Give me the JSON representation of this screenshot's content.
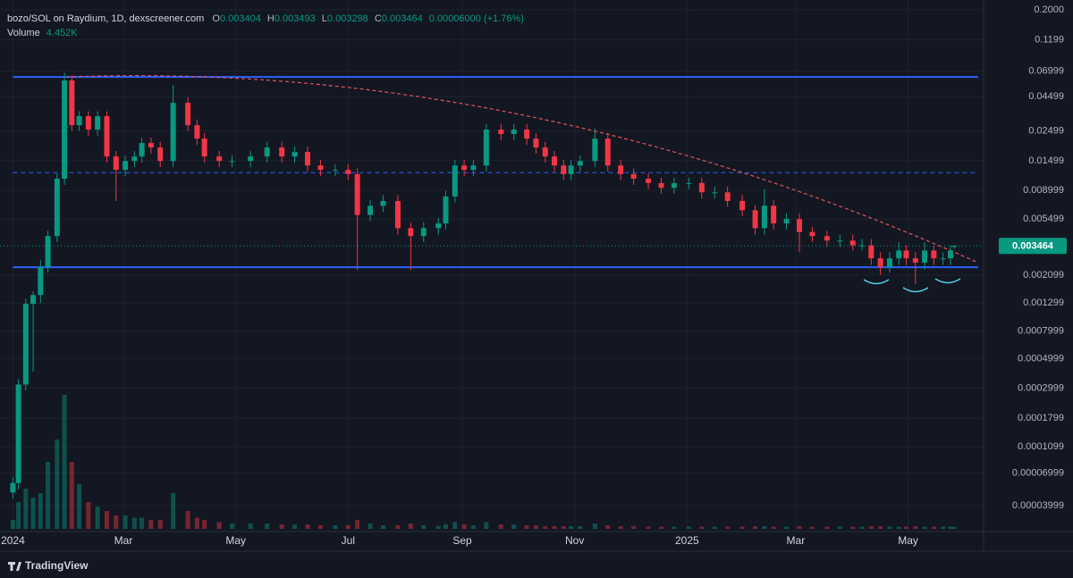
{
  "chart_data": {
    "type": "candlestick",
    "title": "bozo/SOL on Raydium, 1D, dexscreener.com",
    "ohlc_labels": [
      "O",
      "H",
      "L",
      "C"
    ],
    "change": "0.00006000 (+1.76%)",
    "volume_label": "Volume",
    "volume_last_label": "4.452K",
    "brand": "TradingView",
    "log_scale": true,
    "grid": true,
    "colors": {
      "up": "#089981",
      "down": "#f23645",
      "level": "#2962ff",
      "trend": "#e0555a",
      "background": "#131722"
    },
    "x": [
      0,
      3,
      7,
      11,
      15,
      19,
      24,
      28,
      32,
      36,
      41,
      46,
      51,
      56,
      61,
      66,
      70,
      75,
      80,
      87,
      95,
      100,
      104,
      112,
      119,
      129,
      138,
      146,
      153,
      160,
      167,
      175,
      182,
      187,
      194,
      201,
      209,
      216,
      223,
      231,
      235,
      240,
      245,
      250,
      257,
      265,
      272,
      279,
      284,
      289,
      294,
      299,
      303,
      308,
      316,
      323,
      330,
      337,
      345,
      352,
      359,
      367,
      374,
      381,
      388,
      396,
      403,
      408,
      413,
      420,
      427,
      434,
      442,
      449,
      456,
      461,
      466,
      471,
      476,
      481,
      485,
      490,
      495,
      500,
      505,
      509,
      511
    ],
    "open": [
      5e-05,
      5.9e-05,
      0.00032,
      0.00128,
      0.00149,
      0.0024,
      0.0041,
      0.011,
      0.0595,
      0.0276,
      0.0322,
      0.0256,
      0.0322,
      0.0161,
      0.0128,
      0.0149,
      0.0161,
      0.0203,
      0.0188,
      0.0149,
      0.0405,
      0.0276,
      0.0219,
      0.0161,
      0.0149,
      0.0149,
      0.0161,
      0.0188,
      0.0161,
      0.0174,
      0.0138,
      0.0128,
      0.0128,
      0.0119,
      0.0059,
      0.0069,
      0.0075,
      0.0047,
      0.0041,
      0.0047,
      0.0051,
      0.0081,
      0.0138,
      0.0128,
      0.0138,
      0.0256,
      0.0237,
      0.0256,
      0.0219,
      0.0188,
      0.0161,
      0.0138,
      0.0119,
      0.0138,
      0.0149,
      0.0219,
      0.0138,
      0.0119,
      0.011,
      0.0102,
      0.0094,
      0.0102,
      0.0102,
      0.0087,
      0.0087,
      0.0075,
      0.0064,
      0.0047,
      0.0069,
      0.0051,
      0.0055,
      0.0044,
      0.0041,
      0.0038,
      0.0038,
      0.0035,
      0.0035,
      0.0028,
      0.0024,
      0.0028,
      0.0032,
      0.0028,
      0.0026,
      0.0032,
      0.0028,
      0.0028,
      0.003404
    ],
    "high": [
      6.5e-05,
      0.00035,
      0.0014,
      0.0016,
      0.0027,
      0.0045,
      0.012,
      0.068,
      0.065,
      0.035,
      0.035,
      0.035,
      0.035,
      0.0177,
      0.0164,
      0.0177,
      0.0223,
      0.0223,
      0.0207,
      0.055,
      0.0446,
      0.0304,
      0.0241,
      0.0177,
      0.0164,
      0.0177,
      0.0207,
      0.0207,
      0.0191,
      0.0191,
      0.0152,
      0.0141,
      0.0141,
      0.0131,
      0.0076,
      0.0083,
      0.0083,
      0.0052,
      0.0052,
      0.0056,
      0.0089,
      0.0152,
      0.0152,
      0.0152,
      0.0282,
      0.0282,
      0.0282,
      0.0282,
      0.0241,
      0.0207,
      0.0177,
      0.0152,
      0.0152,
      0.0164,
      0.026,
      0.0241,
      0.0152,
      0.0131,
      0.0121,
      0.0112,
      0.0112,
      0.0112,
      0.0112,
      0.0096,
      0.0096,
      0.0083,
      0.007,
      0.0092,
      0.0076,
      0.0061,
      0.0061,
      0.0048,
      0.0045,
      0.0042,
      0.0042,
      0.0039,
      0.0039,
      0.0031,
      0.0031,
      0.0037,
      0.0035,
      0.0031,
      0.0037,
      0.0035,
      0.0031,
      0.0035,
      0.003493
    ],
    "low": [
      4.5e-05,
      5.3e-05,
      0.00029,
      0.0004,
      0.0013,
      0.0022,
      0.0037,
      0.0099,
      0.025,
      0.025,
      0.023,
      0.023,
      0.0145,
      0.0075,
      0.0115,
      0.0134,
      0.0145,
      0.0169,
      0.0134,
      0.0134,
      0.0248,
      0.0197,
      0.0145,
      0.0134,
      0.0134,
      0.0134,
      0.0145,
      0.0145,
      0.0145,
      0.0124,
      0.0115,
      0.0115,
      0.0107,
      0.0023,
      0.0053,
      0.0062,
      0.0042,
      0.0023,
      0.0037,
      0.0042,
      0.0046,
      0.0073,
      0.0115,
      0.0115,
      0.0124,
      0.0213,
      0.0213,
      0.0197,
      0.0169,
      0.0145,
      0.0124,
      0.0107,
      0.0107,
      0.0124,
      0.0134,
      0.0124,
      0.0107,
      0.0099,
      0.0092,
      0.0085,
      0.0085,
      0.0092,
      0.0078,
      0.0078,
      0.0068,
      0.0058,
      0.0042,
      0.0042,
      0.0046,
      0.0046,
      0.0031,
      0.0037,
      0.0034,
      0.0034,
      0.0032,
      0.0032,
      0.0025,
      0.0021,
      0.0022,
      0.0025,
      0.0025,
      0.0018,
      0.0023,
      0.0025,
      0.0025,
      0.0025,
      0.003298
    ],
    "close": [
      5.9e-05,
      0.00032,
      0.00128,
      0.00149,
      0.0024,
      0.0041,
      0.011,
      0.0595,
      0.0276,
      0.0322,
      0.0256,
      0.0322,
      0.0161,
      0.0128,
      0.0149,
      0.0161,
      0.0203,
      0.0188,
      0.0149,
      0.0405,
      0.0276,
      0.0219,
      0.0161,
      0.0149,
      0.0149,
      0.0161,
      0.0188,
      0.0161,
      0.0174,
      0.0138,
      0.0128,
      0.0128,
      0.0119,
      0.0059,
      0.0069,
      0.0075,
      0.0047,
      0.0041,
      0.0047,
      0.0051,
      0.0081,
      0.0138,
      0.0128,
      0.0138,
      0.0256,
      0.0237,
      0.0256,
      0.0219,
      0.0188,
      0.0161,
      0.0138,
      0.0119,
      0.0138,
      0.0149,
      0.0219,
      0.0138,
      0.0119,
      0.011,
      0.0102,
      0.0094,
      0.0102,
      0.0102,
      0.0087,
      0.0087,
      0.0075,
      0.0064,
      0.0047,
      0.0069,
      0.0051,
      0.0055,
      0.0044,
      0.0041,
      0.0038,
      0.0038,
      0.0035,
      0.0035,
      0.0028,
      0.0024,
      0.0028,
      0.0032,
      0.0028,
      0.0026,
      0.0032,
      0.0028,
      0.0028,
      0.0032,
      0.003464
    ],
    "volume": [
      20000,
      60000,
      90000,
      70000,
      80000,
      150000,
      200000,
      300000,
      150000,
      100000,
      60000,
      50000,
      40000,
      30000,
      30000,
      25000,
      25000,
      20000,
      20000,
      80000,
      40000,
      25000,
      20000,
      15000,
      12000,
      12000,
      12000,
      10000,
      10000,
      10000,
      8000,
      8000,
      8000,
      20000,
      12000,
      8000,
      8000,
      12000,
      8000,
      6000,
      10000,
      15000,
      10000,
      8000,
      15000,
      10000,
      10000,
      8000,
      8000,
      6000,
      6000,
      6000,
      6000,
      6000,
      12000,
      8000,
      6000,
      6000,
      5000,
      5000,
      5000,
      5000,
      5000,
      5000,
      5000,
      5000,
      6000,
      6000,
      5000,
      5000,
      6000,
      5000,
      5000,
      5000,
      5000,
      5000,
      6000,
      6000,
      5000,
      5000,
      5000,
      6000,
      5000,
      5000,
      5000,
      5000,
      4452
    ],
    "xlim": [
      -7,
      527
    ],
    "xticks": [
      {
        "value": 0,
        "label": "2024"
      },
      {
        "value": 60,
        "label": "Mar"
      },
      {
        "value": 121,
        "label": "May"
      },
      {
        "value": 182,
        "label": "Jul"
      },
      {
        "value": 244,
        "label": "Sep"
      },
      {
        "value": 305,
        "label": "Nov"
      },
      {
        "value": 366,
        "label": "2025"
      },
      {
        "value": 425,
        "label": "Mar"
      },
      {
        "value": 486,
        "label": "May"
      }
    ],
    "ylim": [
      2.68e-05,
      0.237
    ],
    "yticks": [
      {
        "value": 0.2,
        "label": "0.2000"
      },
      0.1199,
      0.06999,
      0.04499,
      0.02499,
      0.01499,
      0.008999,
      0.005499,
      0.002099,
      0.001299,
      0.0007999,
      0.0004999,
      0.0002999,
      0.0001799,
      0.0001099,
      6.999e-05,
      3.999e-05
    ],
    "levels": [
      {
        "x": [
          0,
          524
        ],
        "value": 0.0632,
        "dashed": false
      },
      {
        "x": [
          0,
          524
        ],
        "value": 0.0122,
        "dashed": true
      },
      {
        "x": [
          0,
          524
        ],
        "value": 0.0024,
        "dashed": false
      }
    ],
    "trendline": {
      "x": [
        29,
        524
      ],
      "y": [
        0.0632,
        0.0026
      ]
    }
  }
}
